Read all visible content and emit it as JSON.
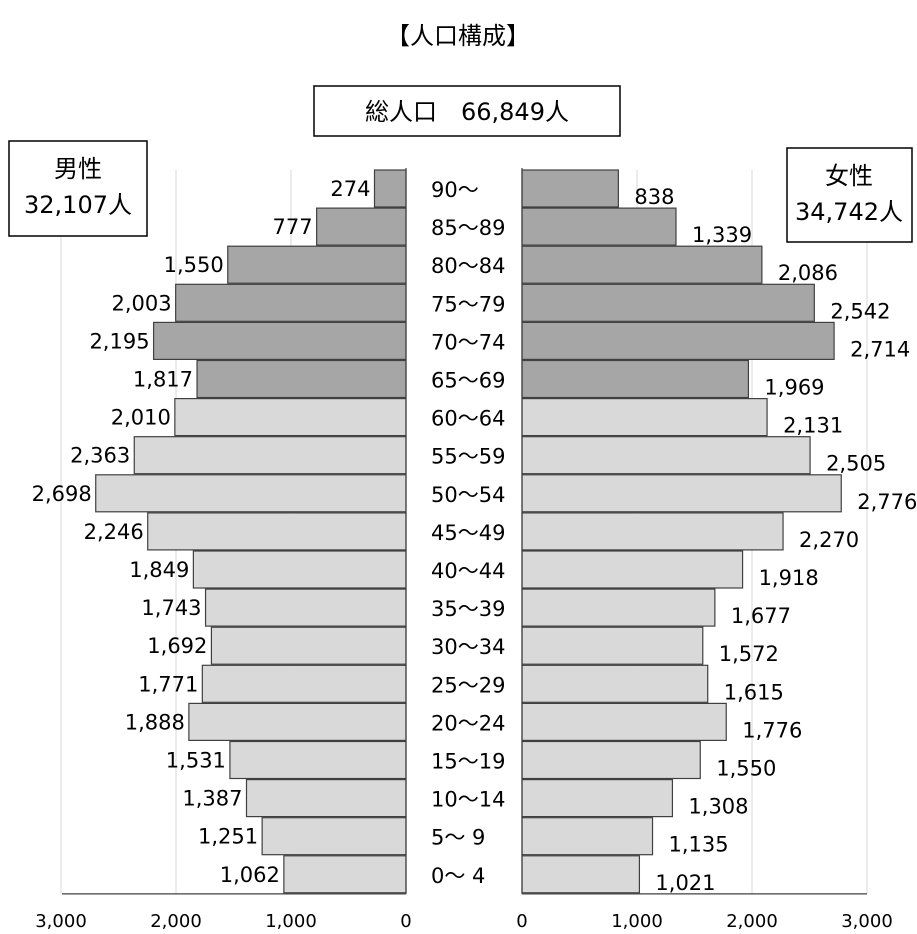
{
  "chart_data": {
    "type": "bar",
    "title": "【人口構成】",
    "total": "総人口　66,849人",
    "male_label": "男性",
    "male_total": "32,107人",
    "female_label": "女性",
    "female_total": "34,742人",
    "categories": [
      "90～",
      "85～89",
      "80～84",
      "75～79",
      "70～74",
      "65～69",
      "60～64",
      "55～59",
      "50～54",
      "45～49",
      "40～44",
      "35～39",
      "30～34",
      "25～29",
      "20～24",
      "15～19",
      "10～14",
      "5～ 9",
      "0～ 4"
    ],
    "male_display": [
      "274",
      "777",
      "1,550",
      "2,003",
      "2,195",
      "1,817",
      "2,010",
      "2,363",
      "2,698",
      "2,246",
      "1,849",
      "1,743",
      "1,692",
      "1,771",
      "1,888",
      "1,531",
      "1,387",
      "1,251",
      "1,062"
    ],
    "female_display": [
      "838",
      "1,339",
      "2,086",
      "2,542",
      "2,714",
      "1,969",
      "2,131",
      "2,505",
      "2,776",
      "2,270",
      "1,918",
      "1,677",
      "1,572",
      "1,615",
      "1,776",
      "1,550",
      "1,308",
      "1,135",
      "1,021"
    ],
    "series": [
      {
        "name": "男性",
        "values": [
          274,
          777,
          1550,
          2003,
          2195,
          1817,
          2010,
          2363,
          2698,
          2246,
          1849,
          1743,
          1692,
          1771,
          1888,
          1531,
          1387,
          1251,
          1062
        ]
      },
      {
        "name": "女性",
        "values": [
          838,
          1339,
          2086,
          2542,
          2714,
          1969,
          2131,
          2505,
          2776,
          2270,
          1918,
          1677,
          1572,
          1615,
          1776,
          1550,
          1308,
          1135,
          1021
        ]
      }
    ],
    "xlim": [
      0,
      3000
    ],
    "male_ticks": [
      "3,000",
      "2,000",
      "1,000",
      "0"
    ],
    "female_ticks": [
      "0",
      "1,000",
      "2,000",
      "3,000"
    ],
    "grid": true,
    "colors": {
      "elderly": "#a6a6a6",
      "general": "#d9d9d9",
      "border": "#404040",
      "grid": "#d9d9d9"
    },
    "elderly_from_age": "65～69"
  }
}
